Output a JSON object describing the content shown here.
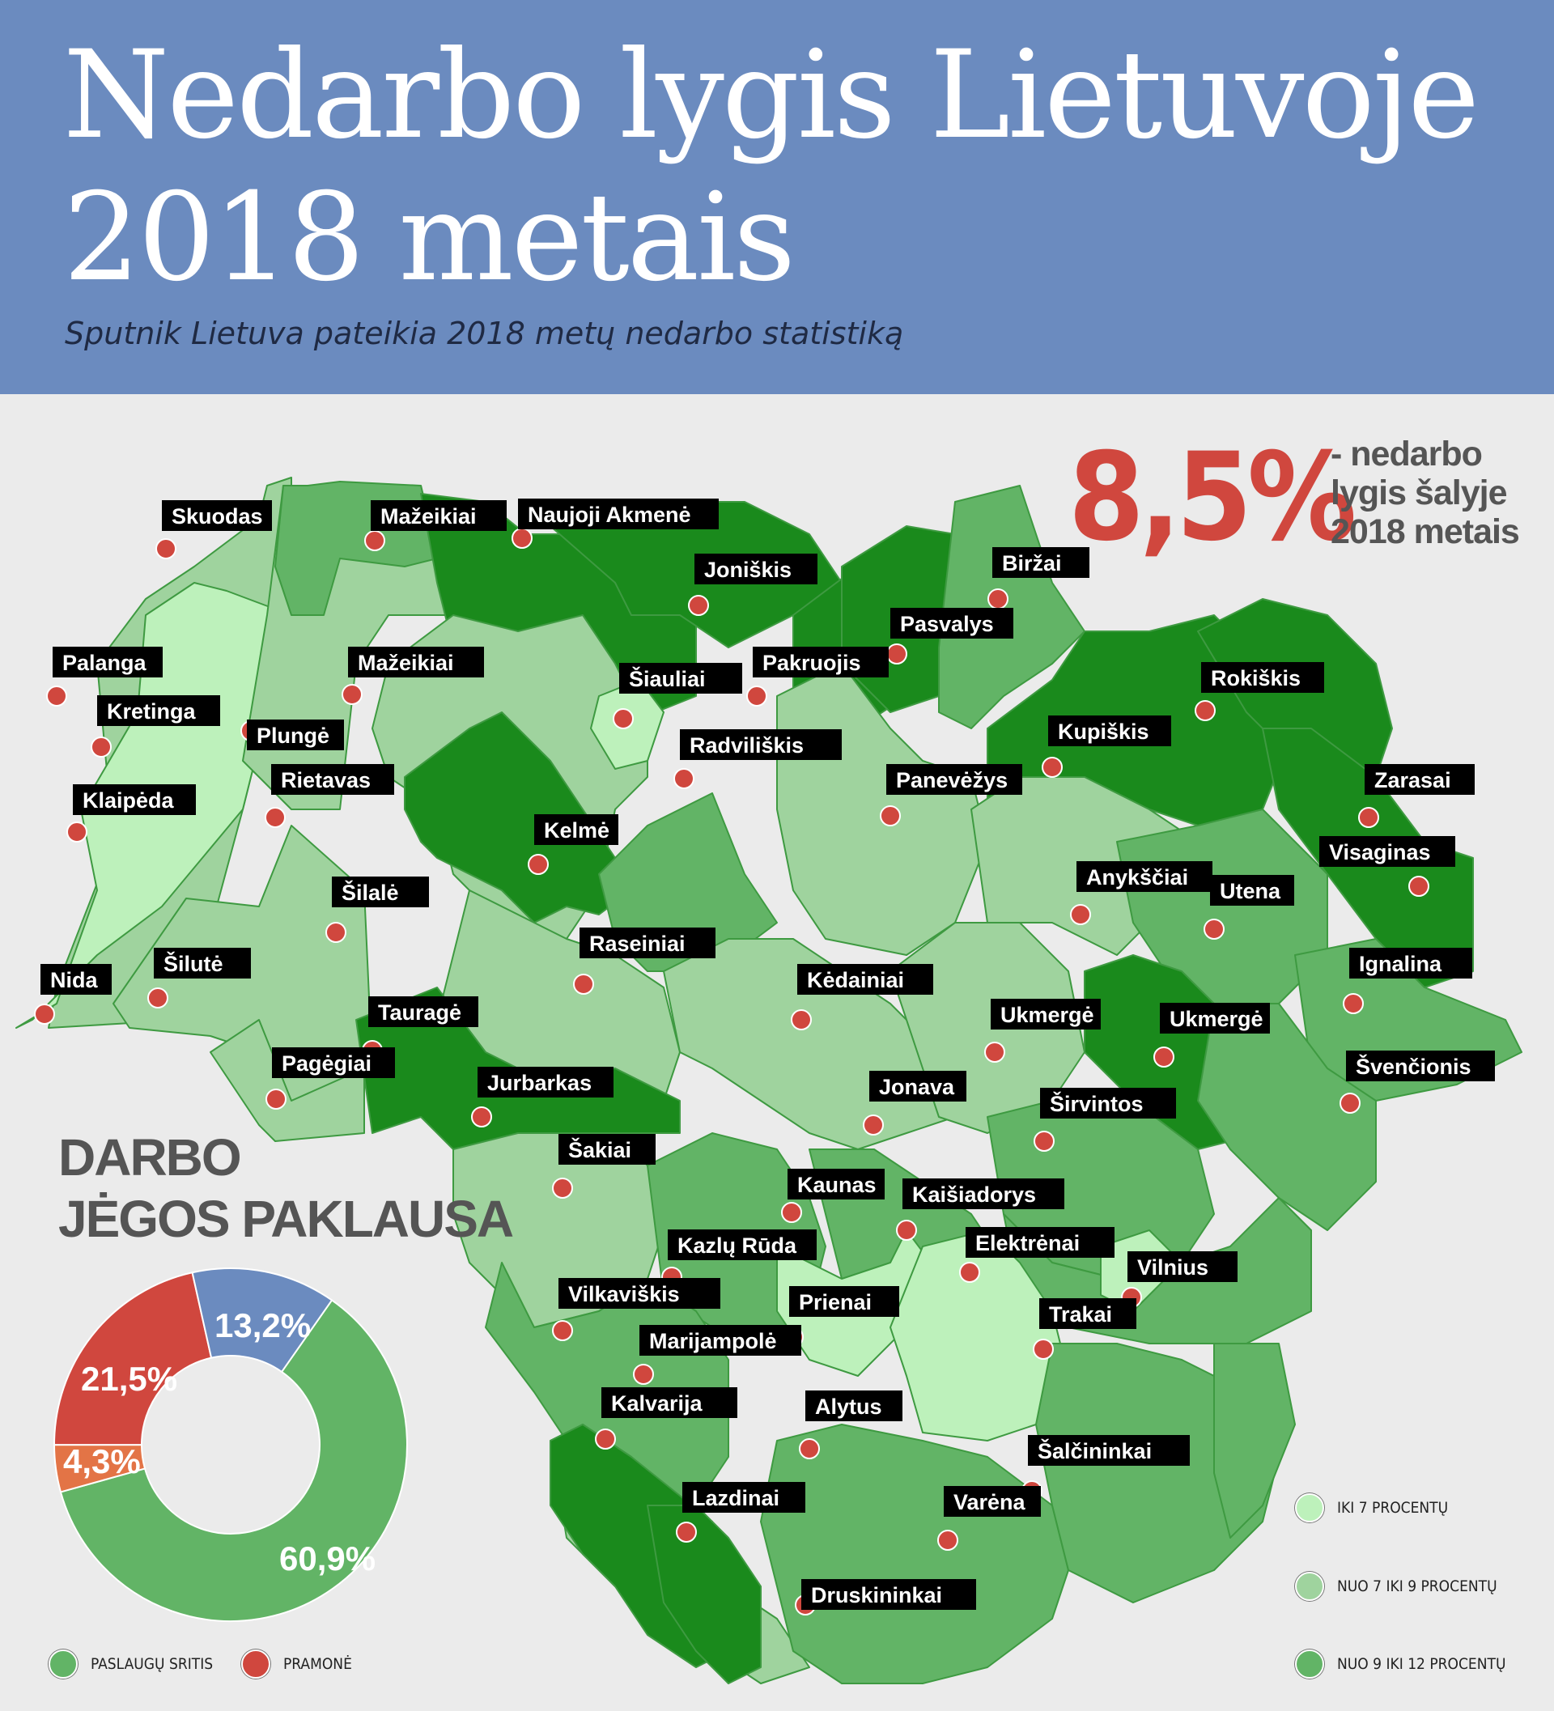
{
  "header": {
    "title_line1": "Nedarbo lygis Lietuvoje",
    "title_line2": "2018 metais",
    "subtitle": "Sputnik Lietuva pateikia 2018 metų nedarbo statistiką"
  },
  "national": {
    "rate": "8,5%",
    "caption": "- nedarbo lygis šalyje 2018 metais"
  },
  "colors": {
    "header_bg": "#6b8bbf",
    "tier_low": "#bdf1bb",
    "tier_mid": "#9fd39e",
    "tier_high": "#62b466",
    "tier_top": "#1a8a1c",
    "accent_red": "#d0473e",
    "accent_blue": "#6b8bbf",
    "accent_orange": "#e37446"
  },
  "map": {
    "cities": [
      {
        "name": "Skuodas"
      },
      {
        "name": "Mažeikiai"
      },
      {
        "name": "Naujoji Akmenė"
      },
      {
        "name": "Joniškis"
      },
      {
        "name": "Biržai"
      },
      {
        "name": "Pasvalys"
      },
      {
        "name": "Palanga"
      },
      {
        "name": "Mažeikiai"
      },
      {
        "name": "Šiauliai"
      },
      {
        "name": "Pakruojis"
      },
      {
        "name": "Rokiškis"
      },
      {
        "name": "Kretinga"
      },
      {
        "name": "Plungė"
      },
      {
        "name": "Radviliškis"
      },
      {
        "name": "Kupiškis"
      },
      {
        "name": "Rietavas"
      },
      {
        "name": "Panevėžys"
      },
      {
        "name": "Zarasai"
      },
      {
        "name": "Klaipėda"
      },
      {
        "name": "Kelmė"
      },
      {
        "name": "Visaginas"
      },
      {
        "name": "Šilalė"
      },
      {
        "name": "Anykščiai"
      },
      {
        "name": "Utena"
      },
      {
        "name": "Raseiniai"
      },
      {
        "name": "Šilutė"
      },
      {
        "name": "Nida"
      },
      {
        "name": "Kėdainiai"
      },
      {
        "name": "Ignalina"
      },
      {
        "name": "Tauragė"
      },
      {
        "name": "Ukmergė"
      },
      {
        "name": "Ukmergė"
      },
      {
        "name": "Pagėgiai"
      },
      {
        "name": "Jurbarkas"
      },
      {
        "name": "Jonava"
      },
      {
        "name": "Švenčionis"
      },
      {
        "name": "Širvintos"
      },
      {
        "name": "Šakiai"
      },
      {
        "name": "Kaunas"
      },
      {
        "name": "Kaišiadorys"
      },
      {
        "name": "Elektrėnai"
      },
      {
        "name": "Kazlų Rūda"
      },
      {
        "name": "Vilnius"
      },
      {
        "name": "Vilkaviškis"
      },
      {
        "name": "Prienai"
      },
      {
        "name": "Trakai"
      },
      {
        "name": "Marijampolė"
      },
      {
        "name": "Kalvarija"
      },
      {
        "name": "Alytus"
      },
      {
        "name": "Šalčininkai"
      },
      {
        "name": "Lazdinai"
      },
      {
        "name": "Varėna"
      },
      {
        "name": "Druskininkai"
      }
    ],
    "legend": [
      {
        "label": "IKI 7 PROCENTŲ",
        "color": "#bdf1bb"
      },
      {
        "label": "NUO 7 IKI 9 PROCENTŲ",
        "color": "#9fd39e"
      },
      {
        "label": "NUO 9 IKI 12 PROCENTŲ",
        "color": "#62b466"
      }
    ]
  },
  "donut": {
    "title_line1": "DARBO",
    "title_line2": "JĖGOS PAKLAUSA",
    "segments": [
      {
        "label": "60,9%",
        "value": 60.9,
        "color": "#62b466",
        "icon": "services-sector"
      },
      {
        "label": "4,3%",
        "value": 4.3,
        "color": "#e37446",
        "icon": "other-sector"
      },
      {
        "label": "21,5%",
        "value": 21.5,
        "color": "#d0473e",
        "icon": "industry-sector"
      },
      {
        "label": "13,2%",
        "value": 13.2,
        "color": "#6b8bbf",
        "icon": "other-sector"
      }
    ],
    "legend": [
      {
        "label": "PASLAUGŲ SRITIS",
        "color": "#62b466"
      },
      {
        "label": "PRAMONĖ",
        "color": "#d0473e"
      }
    ]
  }
}
